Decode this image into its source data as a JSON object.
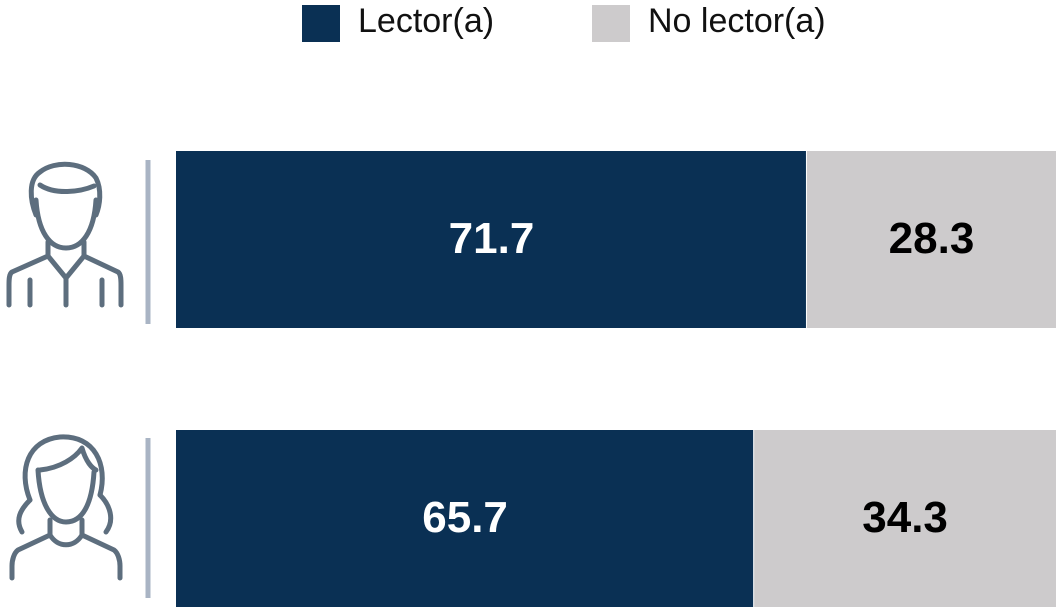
{
  "chart_data": {
    "type": "stacked_bar_horizontal",
    "categories": [
      null,
      null
    ],
    "xlim": [
      0,
      100
    ],
    "series": [
      {
        "name": "Lector(a)",
        "color": "#0a3054",
        "values": [
          71.7,
          65.7
        ]
      },
      {
        "name": "No lector(a)",
        "color": "#cdcbcc",
        "values": [
          28.3,
          34.3
        ]
      }
    ],
    "legend": "top"
  }
}
